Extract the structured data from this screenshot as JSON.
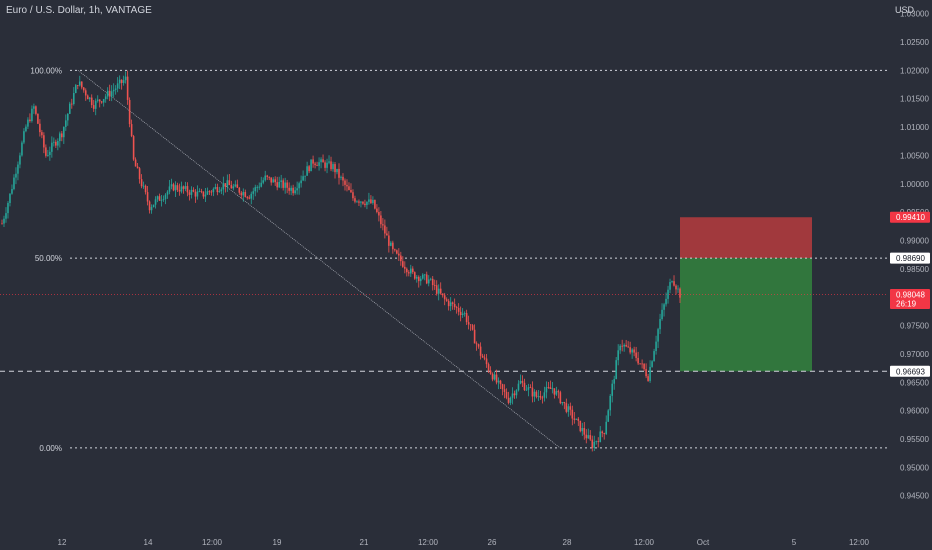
{
  "chart_data": {
    "type": "candlestick",
    "title": "Euro / U.S. Dollar, 1h, VANTAGE",
    "currency": "USD",
    "ylim": [
      0.943,
      1.031
    ],
    "y_ticks": [
      "1.03000",
      "1.02500",
      "1.02000",
      "1.01500",
      "1.01000",
      "1.00500",
      "1.00000",
      "0.99500",
      "0.99000",
      "0.98500",
      "0.98000",
      "0.97500",
      "0.97000",
      "0.96500",
      "0.96000",
      "0.95500",
      "0.95000",
      "0.94500"
    ],
    "x_ticks": [
      "12",
      "14",
      "12:00",
      "19",
      "21",
      "12:00",
      "26",
      "28",
      "12:00",
      "Oct",
      "5",
      "12:00"
    ],
    "fib_levels": [
      {
        "label": "100.00%",
        "value": 1.02
      },
      {
        "label": "50.00%",
        "value": 0.9869
      },
      {
        "label": "0.00%",
        "value": 0.95343
      }
    ],
    "price_tags": [
      {
        "text": "0.99410",
        "value": 0.9941,
        "color": "#f23645"
      },
      {
        "text": "0.98690",
        "value": 0.9869,
        "color": "#ffffff"
      },
      {
        "text": "0.98048",
        "sub": "26:19",
        "value": 0.98048,
        "color": "#f23645"
      },
      {
        "text": "0.96693",
        "value": 0.96693,
        "color": "#ffffff"
      }
    ],
    "position_tool": {
      "stop": 0.9941,
      "entry": 0.9869,
      "target": 0.96693,
      "stop_color": "#a83a3d",
      "target_color": "#327a3d"
    },
    "current_price": 0.98048,
    "horizontal_line": 0.96693,
    "diagonal_from": [
      1.02,
      0.95343
    ],
    "up_color": "#26a69a",
    "down_color": "#ef5350",
    "background": "#2a2e39",
    "path": [
      {
        "i": 0,
        "p": 0.993
      },
      {
        "i": 4,
        "p": 0.998
      },
      {
        "i": 12,
        "p": 1.01
      },
      {
        "i": 16,
        "p": 1.0135
      },
      {
        "i": 22,
        "p": 1.005
      },
      {
        "i": 30,
        "p": 1.009
      },
      {
        "i": 38,
        "p": 1.018
      },
      {
        "i": 46,
        "p": 1.014
      },
      {
        "i": 54,
        "p": 1.016
      },
      {
        "i": 62,
        "p": 1.0185
      },
      {
        "i": 66,
        "p": 1.004
      },
      {
        "i": 74,
        "p": 0.996
      },
      {
        "i": 86,
        "p": 0.9995
      },
      {
        "i": 100,
        "p": 0.998
      },
      {
        "i": 112,
        "p": 1.0
      },
      {
        "i": 124,
        "p": 0.998
      },
      {
        "i": 132,
        "p": 1.001
      },
      {
        "i": 146,
        "p": 0.999
      },
      {
        "i": 156,
        "p": 1.004
      },
      {
        "i": 166,
        "p": 1.003
      },
      {
        "i": 176,
        "p": 0.9975
      },
      {
        "i": 186,
        "p": 0.9965
      },
      {
        "i": 196,
        "p": 0.988
      },
      {
        "i": 206,
        "p": 0.984
      },
      {
        "i": 214,
        "p": 0.983
      },
      {
        "i": 222,
        "p": 0.9795
      },
      {
        "i": 232,
        "p": 0.977
      },
      {
        "i": 240,
        "p": 0.97
      },
      {
        "i": 248,
        "p": 0.965
      },
      {
        "i": 254,
        "p": 0.962
      },
      {
        "i": 260,
        "p": 0.965
      },
      {
        "i": 268,
        "p": 0.9625
      },
      {
        "i": 276,
        "p": 0.964
      },
      {
        "i": 286,
        "p": 0.959
      },
      {
        "i": 296,
        "p": 0.954
      },
      {
        "i": 302,
        "p": 0.9565
      },
      {
        "i": 310,
        "p": 0.972
      },
      {
        "i": 318,
        "p": 0.9695
      },
      {
        "i": 324,
        "p": 0.966
      },
      {
        "i": 330,
        "p": 0.976
      },
      {
        "i": 336,
        "p": 0.9835
      },
      {
        "i": 340,
        "p": 0.9805
      }
    ]
  }
}
